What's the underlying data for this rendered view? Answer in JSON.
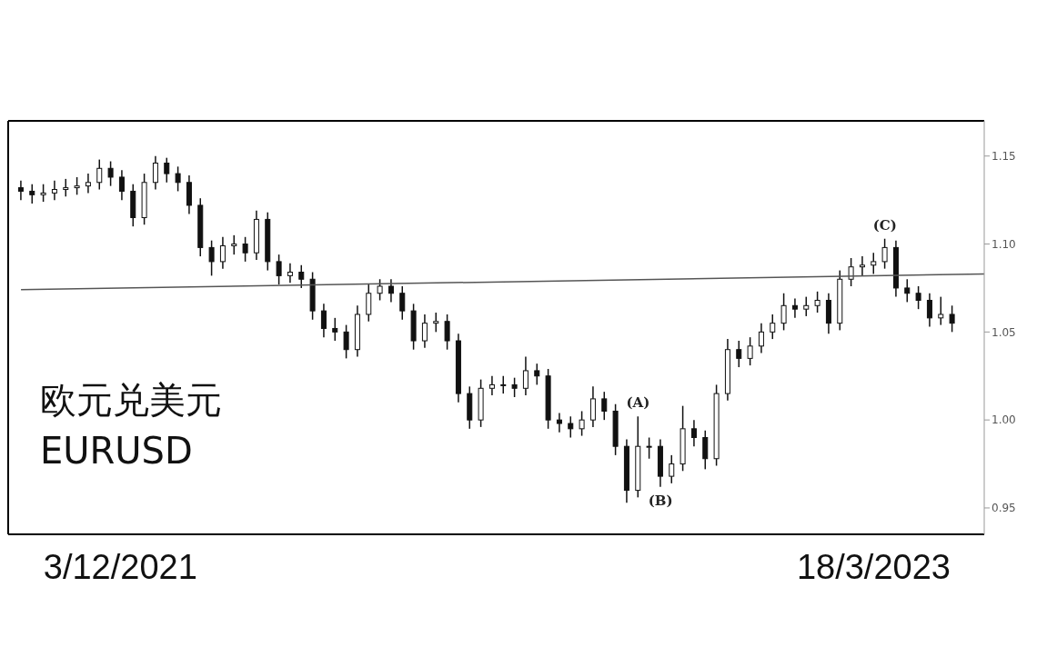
{
  "chart_data": {
    "type": "candlestick",
    "title": "欧元兑美元",
    "subtitle": "EURUSD",
    "x": [
      "2021-10-02",
      "2021-10-09",
      "2021-10-16",
      "2021-10-23",
      "2021-10-30",
      "2021-11-06",
      "2021-11-13",
      "2021-11-20",
      "2021-11-27",
      "2021-12-04",
      "2021-12-11",
      "2021-12-18",
      "2021-12-25",
      "2022-01-01",
      "2022-01-08",
      "2022-01-15",
      "2022-01-22",
      "2022-01-29",
      "2022-02-05",
      "2022-02-12",
      "2022-02-19",
      "2022-02-26",
      "2022-03-05",
      "2022-03-12",
      "2022-03-19",
      "2022-03-26",
      "2022-04-02",
      "2022-04-09",
      "2022-04-16",
      "2022-04-23",
      "2022-04-30",
      "2022-05-07",
      "2022-05-14",
      "2022-05-21",
      "2022-05-28",
      "2022-06-04",
      "2022-06-11",
      "2022-06-18",
      "2022-06-25",
      "2022-07-02",
      "2022-07-09",
      "2022-07-16",
      "2022-07-23",
      "2022-07-30",
      "2022-08-06",
      "2022-08-13",
      "2022-08-20",
      "2022-08-27",
      "2022-09-03",
      "2022-09-10",
      "2022-09-17",
      "2022-09-24",
      "2022-10-01",
      "2022-10-08",
      "2022-10-15",
      "2022-10-22",
      "2022-10-29",
      "2022-11-05",
      "2022-11-12",
      "2022-11-19",
      "2022-11-26",
      "2022-12-03",
      "2022-12-10",
      "2022-12-17",
      "2022-12-24",
      "2022-12-31",
      "2023-01-07",
      "2023-01-14",
      "2023-01-21",
      "2023-01-28",
      "2023-02-04",
      "2023-02-11",
      "2023-02-18",
      "2023-02-25",
      "2023-03-04",
      "2023-03-11",
      "2023-03-18",
      "2023-03-25",
      "2023-04-01",
      "2023-04-08",
      "2023-04-15",
      "2023-04-22",
      "2023-04-29",
      "2023-05-06"
    ],
    "ohlc": [
      [
        1.132,
        1.136,
        1.125,
        1.13
      ],
      [
        1.13,
        1.134,
        1.123,
        1.128
      ],
      [
        1.128,
        1.134,
        1.124,
        1.129
      ],
      [
        1.129,
        1.136,
        1.125,
        1.131
      ],
      [
        1.131,
        1.137,
        1.127,
        1.132
      ],
      [
        1.132,
        1.138,
        1.128,
        1.133
      ],
      [
        1.133,
        1.14,
        1.129,
        1.135
      ],
      [
        1.135,
        1.148,
        1.131,
        1.143
      ],
      [
        1.143,
        1.147,
        1.133,
        1.138
      ],
      [
        1.138,
        1.142,
        1.125,
        1.13
      ],
      [
        1.13,
        1.134,
        1.11,
        1.115
      ],
      [
        1.115,
        1.14,
        1.111,
        1.135
      ],
      [
        1.135,
        1.15,
        1.131,
        1.146
      ],
      [
        1.146,
        1.149,
        1.135,
        1.14
      ],
      [
        1.14,
        1.144,
        1.13,
        1.135
      ],
      [
        1.135,
        1.139,
        1.117,
        1.122
      ],
      [
        1.122,
        1.126,
        1.093,
        1.098
      ],
      [
        1.098,
        1.102,
        1.082,
        1.09
      ],
      [
        1.09,
        1.104,
        1.086,
        1.099
      ],
      [
        1.099,
        1.105,
        1.094,
        1.1
      ],
      [
        1.1,
        1.104,
        1.09,
        1.095
      ],
      [
        1.095,
        1.119,
        1.091,
        1.114
      ],
      [
        1.114,
        1.118,
        1.085,
        1.09
      ],
      [
        1.09,
        1.094,
        1.077,
        1.082
      ],
      [
        1.082,
        1.089,
        1.078,
        1.084
      ],
      [
        1.084,
        1.088,
        1.075,
        1.08
      ],
      [
        1.08,
        1.084,
        1.057,
        1.062
      ],
      [
        1.062,
        1.066,
        1.047,
        1.052
      ],
      [
        1.052,
        1.058,
        1.045,
        1.05
      ],
      [
        1.05,
        1.054,
        1.035,
        1.04
      ],
      [
        1.04,
        1.065,
        1.036,
        1.06
      ],
      [
        1.06,
        1.077,
        1.056,
        1.072
      ],
      [
        1.072,
        1.08,
        1.068,
        1.076
      ],
      [
        1.076,
        1.08,
        1.067,
        1.072
      ],
      [
        1.072,
        1.076,
        1.057,
        1.062
      ],
      [
        1.062,
        1.066,
        1.04,
        1.045
      ],
      [
        1.045,
        1.06,
        1.041,
        1.055
      ],
      [
        1.055,
        1.061,
        1.05,
        1.056
      ],
      [
        1.056,
        1.06,
        1.04,
        1.045
      ],
      [
        1.045,
        1.049,
        1.01,
        1.015
      ],
      [
        1.015,
        1.019,
        0.995,
        1.0
      ],
      [
        1.0,
        1.023,
        0.996,
        1.018
      ],
      [
        1.018,
        1.025,
        1.014,
        1.02
      ],
      [
        1.02,
        1.025,
        1.015,
        1.02
      ],
      [
        1.02,
        1.024,
        1.013,
        1.018
      ],
      [
        1.018,
        1.036,
        1.014,
        1.028
      ],
      [
        1.028,
        1.032,
        1.02,
        1.025
      ],
      [
        1.025,
        1.029,
        0.995,
        1.0
      ],
      [
        1.0,
        1.004,
        0.993,
        0.998
      ],
      [
        0.998,
        1.002,
        0.99,
        0.995
      ],
      [
        0.995,
        1.005,
        0.991,
        1.0
      ],
      [
        1.0,
        1.019,
        0.996,
        1.012
      ],
      [
        1.012,
        1.016,
        1.0,
        1.005
      ],
      [
        1.005,
        1.009,
        0.98,
        0.985
      ],
      [
        0.985,
        0.989,
        0.953,
        0.96
      ],
      [
        0.96,
        1.002,
        0.956,
        0.985
      ],
      [
        0.985,
        0.99,
        0.978,
        0.985
      ],
      [
        0.985,
        0.989,
        0.962,
        0.968
      ],
      [
        0.968,
        0.98,
        0.964,
        0.975
      ],
      [
        0.975,
        1.008,
        0.971,
        0.995
      ],
      [
        0.995,
        1.0,
        0.985,
        0.99
      ],
      [
        0.99,
        0.994,
        0.972,
        0.978
      ],
      [
        0.978,
        1.02,
        0.974,
        1.015
      ],
      [
        1.015,
        1.046,
        1.011,
        1.04
      ],
      [
        1.04,
        1.045,
        1.03,
        1.035
      ],
      [
        1.035,
        1.047,
        1.031,
        1.042
      ],
      [
        1.042,
        1.055,
        1.038,
        1.05
      ],
      [
        1.05,
        1.06,
        1.046,
        1.055
      ],
      [
        1.055,
        1.072,
        1.051,
        1.065
      ],
      [
        1.065,
        1.069,
        1.058,
        1.063
      ],
      [
        1.063,
        1.07,
        1.059,
        1.065
      ],
      [
        1.065,
        1.073,
        1.061,
        1.068
      ],
      [
        1.068,
        1.072,
        1.049,
        1.055
      ],
      [
        1.055,
        1.085,
        1.051,
        1.08
      ],
      [
        1.08,
        1.092,
        1.076,
        1.087
      ],
      [
        1.087,
        1.093,
        1.082,
        1.088
      ],
      [
        1.088,
        1.095,
        1.083,
        1.09
      ],
      [
        1.09,
        1.103,
        1.086,
        1.098
      ],
      [
        1.098,
        1.102,
        1.07,
        1.075
      ],
      [
        1.075,
        1.08,
        1.067,
        1.072
      ],
      [
        1.072,
        1.076,
        1.063,
        1.068
      ],
      [
        1.068,
        1.072,
        1.053,
        1.058
      ],
      [
        1.058,
        1.07,
        1.054,
        1.06
      ],
      [
        1.06,
        1.065,
        1.05,
        1.055
      ]
    ],
    "color": "#111111",
    "series": [
      {
        "type": "line",
        "color": "#555555",
        "x": [
          "2021-10-02",
          "2023-05-26"
        ],
        "values": [
          1.074,
          1.083
        ]
      }
    ],
    "xlim": [
      "2021-09-24",
      "2023-05-26"
    ],
    "xticks": [
      {
        "value": "2021-12-03",
        "label": "3/12/2021"
      },
      {
        "value": "2023-03-18",
        "label": "18/3/2023"
      }
    ],
    "ylim": [
      0.935,
      1.17
    ],
    "yticks": [
      {
        "value": 0.95,
        "label": "0.95"
      },
      {
        "value": 1.0,
        "label": "1.00"
      },
      {
        "value": 1.05,
        "label": "1.05"
      },
      {
        "value": 1.1,
        "label": "1.10"
      },
      {
        "value": 1.15,
        "label": "1.15"
      }
    ],
    "annotations": [
      {
        "text": "(A)",
        "x": "2022-10-22",
        "y": 1.002
      },
      {
        "text": "(B)",
        "x": "2022-11-05",
        "y": 0.962
      },
      {
        "text": "(C)",
        "x": "2023-03-25",
        "y": 1.103
      }
    ],
    "line_style": "solid"
  }
}
